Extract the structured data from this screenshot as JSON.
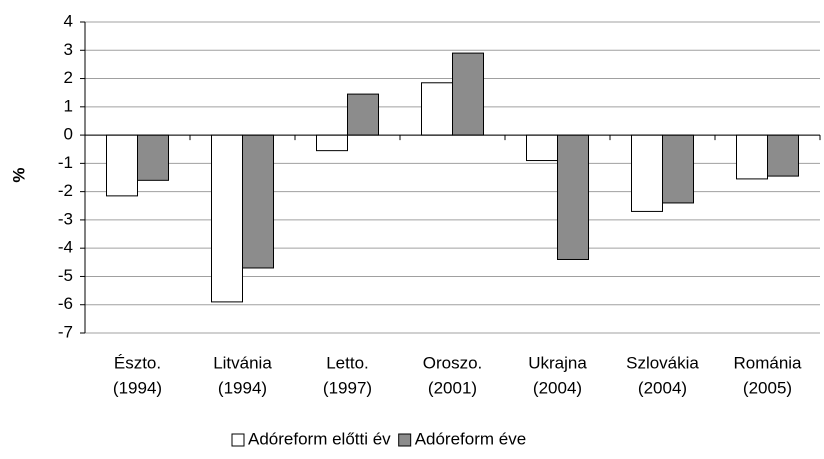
{
  "chart_data": {
    "type": "bar",
    "ylabel": "%",
    "categories": [
      [
        "Észto.",
        "(1994)"
      ],
      [
        "Litvánia",
        "(1994)"
      ],
      [
        "Letto.",
        "(1997)"
      ],
      [
        "Oroszo.",
        "(2001)"
      ],
      [
        "Ukrajna",
        "(2004)"
      ],
      [
        "Szlovákia",
        "(2004)"
      ],
      [
        "Románia",
        "(2005)"
      ]
    ],
    "series": [
      {
        "name": "Adóreform előtti év",
        "color": "#ffffff",
        "values": [
          -2.15,
          -5.9,
          -0.55,
          1.85,
          -0.9,
          -2.7,
          -1.55
        ]
      },
      {
        "name": "Adóreform éve",
        "color": "#8c8c8c",
        "values": [
          -1.6,
          -4.7,
          1.45,
          2.9,
          -4.4,
          -2.4,
          -1.45
        ]
      }
    ],
    "ylim": [
      -7,
      4
    ],
    "yticks": [
      4,
      3,
      2,
      1,
      0,
      -1,
      -2,
      -3,
      -4,
      -5,
      -6,
      -7
    ],
    "grid": true,
    "legend": "bottom"
  }
}
